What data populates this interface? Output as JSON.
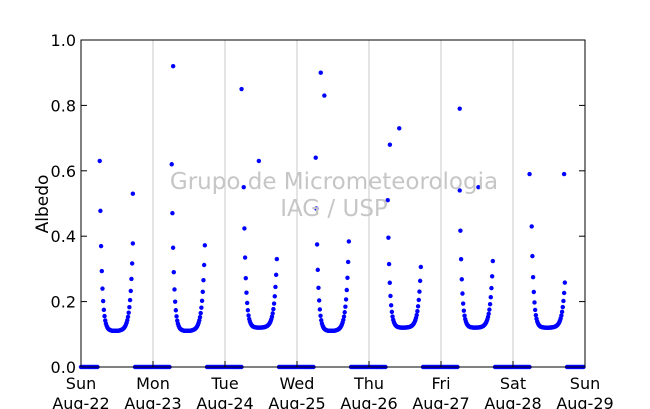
{
  "chart_data": {
    "type": "scatter",
    "ylabel": "Albedo",
    "xlabel": "",
    "watermark": [
      "Grupo de Micrometeorologia",
      "IAG / USP"
    ],
    "x_range_days": [
      0,
      7
    ],
    "ylim": [
      0,
      1.0
    ],
    "y_ticks": [
      "0.0",
      "0.2",
      "0.4",
      "0.6",
      "0.8",
      "1.0"
    ],
    "x_ticks": [
      {
        "day": "Sun",
        "date": "Aug-22"
      },
      {
        "day": "Mon",
        "date": "Aug-23"
      },
      {
        "day": "Tue",
        "date": "Aug-24"
      },
      {
        "day": "Wed",
        "date": "Aug-25"
      },
      {
        "day": "Thu",
        "date": "Aug-26"
      },
      {
        "day": "Fri",
        "date": "Aug-27"
      },
      {
        "day": "Sat",
        "date": "Aug-28"
      },
      {
        "day": "Sun",
        "date": "Aug-29"
      }
    ],
    "grid": "vertical",
    "marker_color": "#0000ff",
    "series": [
      {
        "daily_curves": [
          {
            "date": "Aug-22",
            "sunrise": 0.26,
            "sunset": 0.72,
            "morning_peak": 0.63,
            "min": 0.11
          },
          {
            "date": "Aug-23",
            "sunrise": 0.26,
            "sunset": 0.72,
            "morning_peak": 0.62,
            "min": 0.11
          },
          {
            "date": "Aug-24",
            "sunrise": 0.26,
            "sunset": 0.72,
            "morning_peak": 0.55,
            "min": 0.12
          },
          {
            "date": "Aug-25",
            "sunrise": 0.26,
            "sunset": 0.72,
            "morning_peak": 0.64,
            "min": 0.11
          },
          {
            "date": "Aug-26",
            "sunrise": 0.26,
            "sunset": 0.72,
            "morning_peak": 0.51,
            "min": 0.12
          },
          {
            "date": "Aug-27",
            "sunrise": 0.26,
            "sunset": 0.72,
            "morning_peak": 0.54,
            "min": 0.12
          },
          {
            "date": "Aug-28",
            "sunrise": 0.26,
            "sunset": 0.72,
            "morning_peak": 0.43,
            "min": 0.12
          }
        ],
        "outliers": [
          {
            "x": 1.28,
            "y": 0.92
          },
          {
            "x": 2.23,
            "y": 0.85
          },
          {
            "x": 3.33,
            "y": 0.9
          },
          {
            "x": 3.38,
            "y": 0.83
          },
          {
            "x": 4.42,
            "y": 0.73
          },
          {
            "x": 4.29,
            "y": 0.68
          },
          {
            "x": 5.26,
            "y": 0.79
          },
          {
            "x": 0.72,
            "y": 0.53
          },
          {
            "x": 2.47,
            "y": 0.63
          },
          {
            "x": 6.23,
            "y": 0.59
          },
          {
            "x": 6.71,
            "y": 0.59
          },
          {
            "x": 5.52,
            "y": 0.55
          }
        ],
        "night_value": 0.0
      }
    ]
  }
}
